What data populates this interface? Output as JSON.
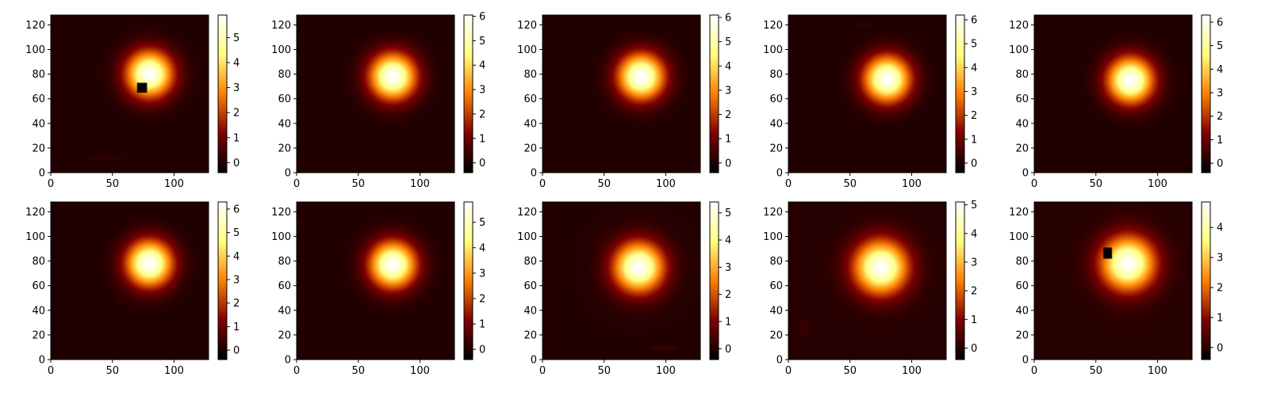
{
  "chart_data": {
    "type": "heatmap",
    "grid": false,
    "colormap": "afmhot",
    "colormap_stops": [
      "#000000",
      "#800000",
      "#ff8000",
      "#ffff80",
      "#ffffff"
    ],
    "image_extent": [
      0,
      128,
      0,
      128
    ],
    "xticks": [
      0,
      50,
      100
    ],
    "yticks": [
      0,
      20,
      40,
      60,
      80,
      100,
      120
    ],
    "panels": [
      {
        "blob": {
          "x": 80,
          "y": 80,
          "peak": 5.9,
          "sigma": 13
        },
        "defects": [
          {
            "x0": 70,
            "x1": 78,
            "y0": 65,
            "y1": 73,
            "v": -0.4
          },
          {
            "x0": 32,
            "x1": 60,
            "y0": 10,
            "y1": 14,
            "v": 0.12
          }
        ],
        "vmin": -0.4,
        "vmax": 5.9,
        "cbar_ticks": [
          0,
          1,
          2,
          3,
          4,
          5
        ]
      },
      {
        "blob": {
          "x": 78,
          "y": 78,
          "peak": 6.05,
          "sigma": 13
        },
        "defects": [],
        "vmin": -0.4,
        "vmax": 6.05,
        "cbar_ticks": [
          0,
          1,
          2,
          3,
          4,
          5,
          6
        ]
      },
      {
        "blob": {
          "x": 80,
          "y": 78,
          "peak": 6.1,
          "sigma": 13
        },
        "defects": [
          {
            "x0": 122,
            "x1": 128,
            "y0": 68,
            "y1": 71,
            "v": 0.1
          }
        ],
        "vmin": -0.4,
        "vmax": 6.1,
        "cbar_ticks": [
          0,
          1,
          2,
          3,
          4,
          5,
          6
        ]
      },
      {
        "blob": {
          "x": 80,
          "y": 76,
          "peak": 6.2,
          "sigma": 13
        },
        "defects": [
          {
            "x0": 55,
            "x1": 70,
            "y0": 117,
            "y1": 122,
            "v": 0.15
          }
        ],
        "vmin": -0.4,
        "vmax": 6.2,
        "cbar_ticks": [
          0,
          1,
          2,
          3,
          4,
          5,
          6
        ]
      },
      {
        "blob": {
          "x": 78,
          "y": 75,
          "peak": 6.3,
          "sigma": 13
        },
        "defects": [],
        "vmin": -0.4,
        "vmax": 6.3,
        "cbar_ticks": [
          0,
          1,
          2,
          3,
          4,
          5,
          6
        ]
      },
      {
        "blob": {
          "x": 80,
          "y": 78,
          "peak": 6.3,
          "sigma": 13
        },
        "defects": [
          {
            "x0": 54,
            "x1": 60,
            "y0": 44,
            "y1": 50,
            "v": 0.2
          }
        ],
        "vmin": -0.4,
        "vmax": 6.3,
        "cbar_ticks": [
          0,
          1,
          2,
          3,
          4,
          5,
          6
        ]
      },
      {
        "blob": {
          "x": 78,
          "y": 77,
          "peak": 5.8,
          "sigma": 13
        },
        "defects": [
          {
            "x0": 0,
            "x1": 6,
            "y0": 110,
            "y1": 114,
            "v": 0.15
          }
        ],
        "vmin": -0.4,
        "vmax": 5.8,
        "cbar_ticks": [
          0,
          1,
          2,
          3,
          4,
          5
        ]
      },
      {
        "blob": {
          "x": 78,
          "y": 75,
          "peak": 5.4,
          "sigma": 14
        },
        "defects": [
          {
            "x0": 88,
            "x1": 110,
            "y0": 7,
            "y1": 11,
            "v": 0.15
          }
        ],
        "vmin": -0.4,
        "vmax": 5.4,
        "cbar_ticks": [
          0,
          1,
          2,
          3,
          4,
          5
        ]
      },
      {
        "blob": {
          "x": 75,
          "y": 75,
          "peak": 5.1,
          "sigma": 15
        },
        "defects": [
          {
            "x0": 9,
            "x1": 16,
            "y0": 19,
            "y1": 32,
            "v": 0.2
          }
        ],
        "vmin": -0.4,
        "vmax": 5.1,
        "cbar_ticks": [
          0,
          1,
          2,
          3,
          4,
          5
        ]
      },
      {
        "blob": {
          "x": 76,
          "y": 78,
          "peak": 4.85,
          "sigma": 15
        },
        "defects": [
          {
            "x0": 56,
            "x1": 63,
            "y0": 82,
            "y1": 91,
            "v": -0.35
          }
        ],
        "vmin": -0.4,
        "vmax": 4.85,
        "cbar_ticks": [
          0,
          1,
          2,
          3,
          4
        ]
      }
    ]
  }
}
